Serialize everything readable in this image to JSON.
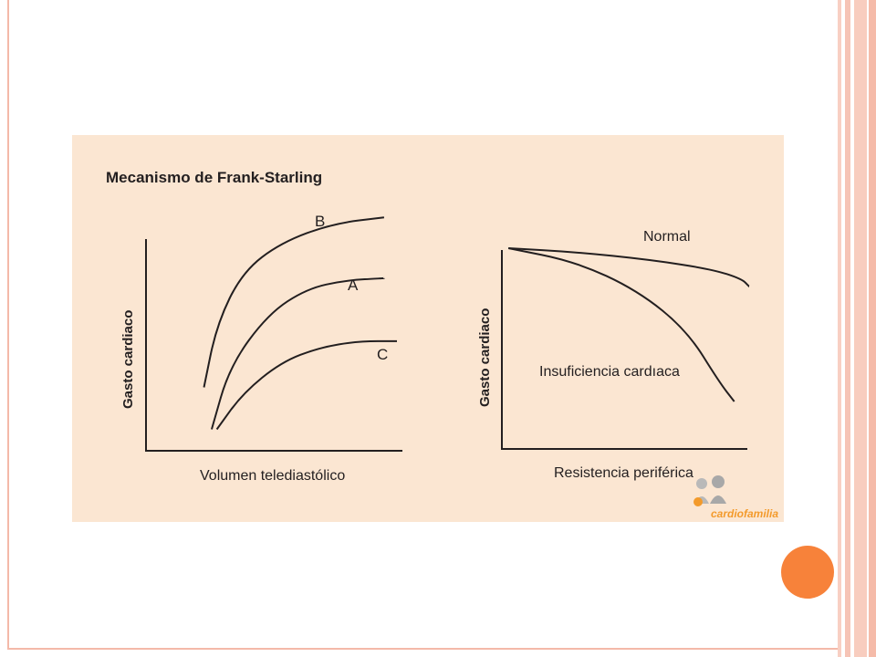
{
  "colors": {
    "accent": "#f7823a",
    "panel_background": "#fbe6d2",
    "border": "#f4b9a9",
    "ink": "#231f20"
  },
  "figure": {
    "title": "Mecanismo de Frank-Starling",
    "logo_text": "cardiofamilia"
  },
  "chart_data": [
    {
      "type": "line",
      "title": "Mecanismo de Frank-Starling",
      "xlabel": "Volumen telediastólico",
      "ylabel": "Gasto cardiaco",
      "grid": false,
      "series": [
        {
          "name": "B",
          "x": [
            0.25,
            0.3,
            0.4,
            0.55,
            0.75,
            0.95
          ],
          "y": [
            0.25,
            0.55,
            0.8,
            0.94,
            1.03,
            1.06
          ]
        },
        {
          "name": "A",
          "x": [
            0.28,
            0.35,
            0.5,
            0.65,
            0.8,
            0.95
          ],
          "y": [
            0.05,
            0.35,
            0.6,
            0.72,
            0.76,
            0.77
          ]
        },
        {
          "name": "C",
          "x": [
            0.3,
            0.4,
            0.55,
            0.7,
            0.85,
            1.0
          ],
          "y": [
            0.05,
            0.22,
            0.37,
            0.44,
            0.47,
            0.47
          ]
        }
      ]
    },
    {
      "type": "line",
      "xlabel": "Resistencia periférica",
      "ylabel": "Gasto cardiaco",
      "grid": false,
      "series": [
        {
          "name": "Normal",
          "x": [
            0.03,
            0.3,
            0.6,
            0.85,
            0.97,
            1.0
          ],
          "y": [
            1.0,
            0.98,
            0.94,
            0.89,
            0.84,
            0.8
          ]
        },
        {
          "name": "Insuficiencia cardıaca",
          "x": [
            0.03,
            0.3,
            0.55,
            0.75,
            0.88,
            0.94
          ],
          "y": [
            1.0,
            0.93,
            0.78,
            0.57,
            0.3,
            0.2
          ]
        }
      ]
    }
  ]
}
